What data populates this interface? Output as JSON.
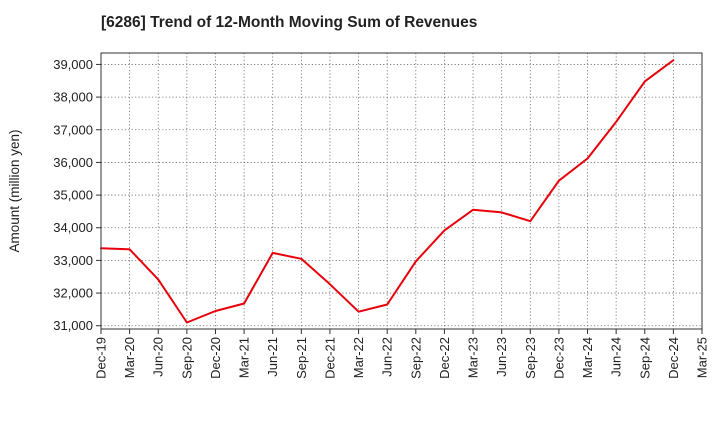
{
  "chart_data": {
    "type": "line",
    "title": "[6286]  Trend of 12-Month Moving Sum of Revenues",
    "xlabel": "",
    "ylabel": "Amount (million yen)",
    "ylim": [
      30900,
      39350
    ],
    "yticks": [
      31000,
      32000,
      33000,
      34000,
      35000,
      36000,
      37000,
      38000,
      39000
    ],
    "ytick_labels": [
      "31,000",
      "32,000",
      "33,000",
      "34,000",
      "35,000",
      "36,000",
      "37,000",
      "38,000",
      "39,000"
    ],
    "categories": [
      "Dec-19",
      "Mar-20",
      "Jun-20",
      "Sep-20",
      "Dec-20",
      "Mar-21",
      "Jun-21",
      "Sep-21",
      "Dec-21",
      "Mar-22",
      "Jun-22",
      "Sep-22",
      "Dec-22",
      "Mar-23",
      "Jun-23",
      "Sep-23",
      "Dec-23",
      "Mar-24",
      "Jun-24",
      "Sep-24",
      "Dec-24",
      "Mar-25"
    ],
    "series": [
      {
        "color": "#e8000b",
        "values": [
          33370,
          33340,
          32420,
          31100,
          31450,
          31680,
          33230,
          33050,
          32270,
          31430,
          31650,
          32970,
          33920,
          34550,
          34470,
          34200,
          35440,
          36120,
          37240,
          38480,
          39130,
          null
        ]
      }
    ],
    "grid": true,
    "grid_style": "dotted",
    "legend": "none"
  }
}
